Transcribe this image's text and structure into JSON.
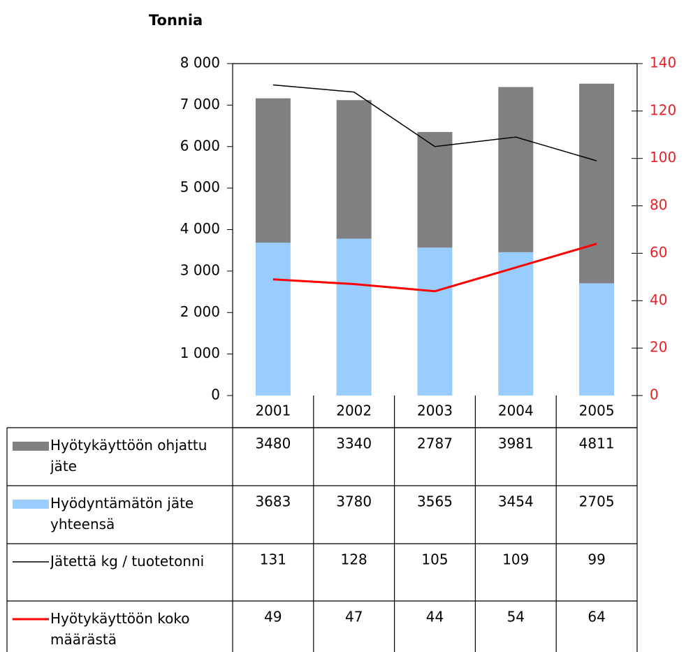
{
  "chart_data": {
    "type": "bar",
    "stacked": true,
    "title": "Tonnia",
    "categories": [
      "2001",
      "2002",
      "2003",
      "2004",
      "2005"
    ],
    "series": [
      {
        "name": "Hyötykäyttöön ohjattu jäte",
        "color": "#808080",
        "values": [
          3480,
          3340,
          2787,
          3981,
          4811
        ]
      },
      {
        "name": "Hyödyntämätön jäte yhteensä",
        "color": "#99ccff",
        "values": [
          3683,
          3780,
          3565,
          3454,
          2705
        ]
      },
      {
        "name": "Jätettä kg / tuotetonni",
        "type": "line",
        "axis": "y2",
        "color": "#000000",
        "values": [
          131,
          128,
          105,
          109,
          99
        ]
      },
      {
        "name": "Hyötykäyttöön koko määrästä",
        "type": "line",
        "axis": "y2",
        "color": "#ff0000",
        "values": [
          49,
          47,
          44,
          54,
          64
        ]
      }
    ],
    "ylim": [
      0,
      8000
    ],
    "yticks": [
      0,
      {
        "value": 1000,
        "label": "1 000"
      },
      {
        "value": 2000,
        "label": "2 000"
      },
      {
        "value": 3000,
        "label": "3 000"
      },
      {
        "value": 4000,
        "label": "4 000"
      },
      {
        "value": 5000,
        "label": "5 000"
      },
      {
        "value": 6000,
        "label": "6 000"
      },
      {
        "value": 7000,
        "label": "7 000"
      },
      {
        "value": 8000,
        "label": "8 000"
      }
    ],
    "y2lim": [
      0,
      140
    ],
    "y2ticks": [
      0,
      20,
      40,
      60,
      80,
      100,
      120,
      140
    ],
    "y2color": "#e8202a"
  }
}
